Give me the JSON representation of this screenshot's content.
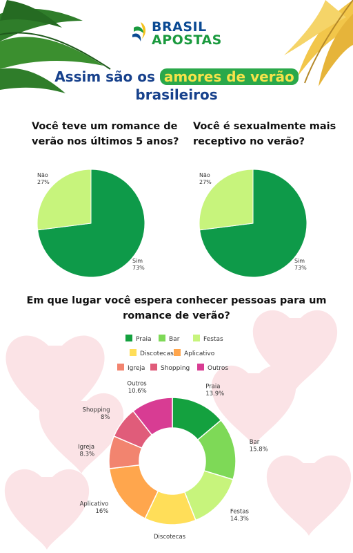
{
  "brand": {
    "line1": "BRASIL",
    "line2": "APOSTAS"
  },
  "headline": {
    "pre": "Assim são os ",
    "highlight": "amores de verão",
    "post": "brasileiros"
  },
  "colors": {
    "primary_green": "#0e9a49",
    "light_green": "#c7f47c",
    "navy": "#17418c"
  },
  "chart_data": [
    {
      "type": "pie",
      "title": "Você teve um romance de verão nos últimos 5 anos?",
      "categories": [
        "Sim",
        "Não"
      ],
      "values": [
        73,
        27
      ],
      "labels": [
        "73%",
        "27%"
      ],
      "colors": [
        "#0e9a49",
        "#c7f47c"
      ]
    },
    {
      "type": "pie",
      "title": "Você é sexualmente mais receptivo no verão?",
      "categories": [
        "Sim",
        "Não"
      ],
      "values": [
        73,
        27
      ],
      "labels": [
        "73%",
        "27%"
      ],
      "colors": [
        "#0e9a49",
        "#c7f47c"
      ]
    },
    {
      "type": "pie",
      "title": "Em que lugar você espera conhecer pessoas para um romance de verão?",
      "categories": [
        "Praia",
        "Bar",
        "Festas",
        "Discotecas",
        "Aplicativo",
        "Igreja",
        "Shopping",
        "Outros"
      ],
      "values": [
        13.9,
        15.8,
        14.3,
        13.1,
        16,
        8.3,
        8,
        10.6
      ],
      "labels": [
        "13.9%",
        "15.8%",
        "14.3%",
        "13.1%",
        "16%",
        "8.3%",
        "8%",
        "10.6%"
      ],
      "colors": [
        "#14a13f",
        "#7ed957",
        "#c7f47c",
        "#ffde59",
        "#ffa64d",
        "#f2846f",
        "#e05c7a",
        "#d83c93"
      ],
      "legend_position": "top"
    }
  ]
}
